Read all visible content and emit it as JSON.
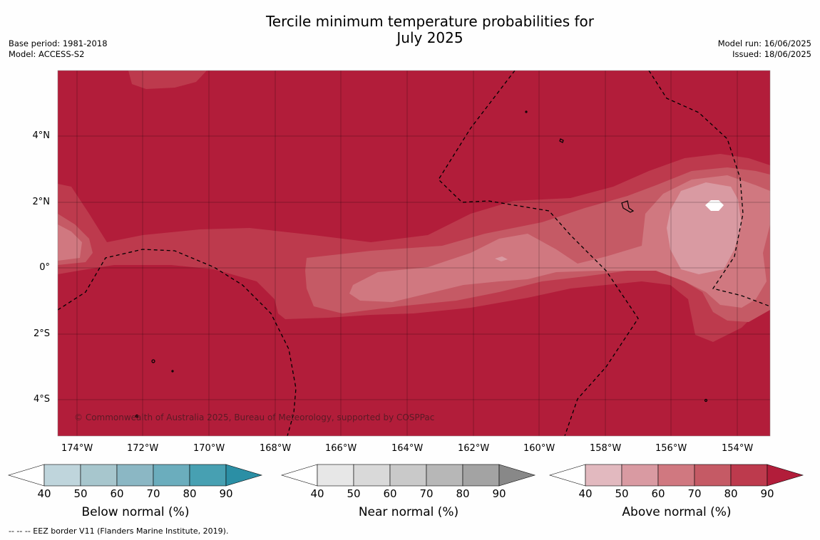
{
  "title": {
    "line1": "Tercile minimum temperature probabilities for",
    "line2": "July 2025"
  },
  "meta": {
    "base_period": "Base period: 1981-2018",
    "model": "Model: ACCESS-S2",
    "model_run": "Model run: 16/06/2025",
    "issued": "Issued: 18/06/2025"
  },
  "map": {
    "copyright": "© Commonwealth of Australia 2025, Bureau of Meteorology, supported by COSPPac",
    "lon_ticks": [
      "174°W",
      "172°W",
      "170°W",
      "168°W",
      "166°W",
      "164°W",
      "162°W",
      "160°W",
      "158°W",
      "156°W",
      "154°W"
    ],
    "lat_ticks": [
      "4°N",
      "2°N",
      "0°",
      "2°S",
      "4°S"
    ]
  },
  "colorbars": [
    {
      "title": "Below normal (%)",
      "labels": [
        "40",
        "50",
        "60",
        "70",
        "80",
        "90"
      ],
      "colors": [
        "#bfd5dc",
        "#a7c6cd",
        "#8bb7c4",
        "#6badbd",
        "#47a0b2",
        "#2b8fa5"
      ]
    },
    {
      "title": "Near normal (%)",
      "labels": [
        "40",
        "50",
        "60",
        "70",
        "80",
        "90"
      ],
      "colors": [
        "#e7e7e7",
        "#d9d9d9",
        "#c9c9c9",
        "#b7b7b7",
        "#a3a3a3",
        "#888888"
      ]
    },
    {
      "title": "Above normal (%)",
      "labels": [
        "40",
        "50",
        "60",
        "70",
        "80",
        "90"
      ],
      "colors": [
        "#e2b9bf",
        "#d99aa2",
        "#d07880",
        "#c55a65",
        "#bd3a4d",
        "#b21d3a"
      ]
    }
  ],
  "footnote": "--  --  -- EEZ border V11 (Flanders Marine Institute, 2019)."
}
